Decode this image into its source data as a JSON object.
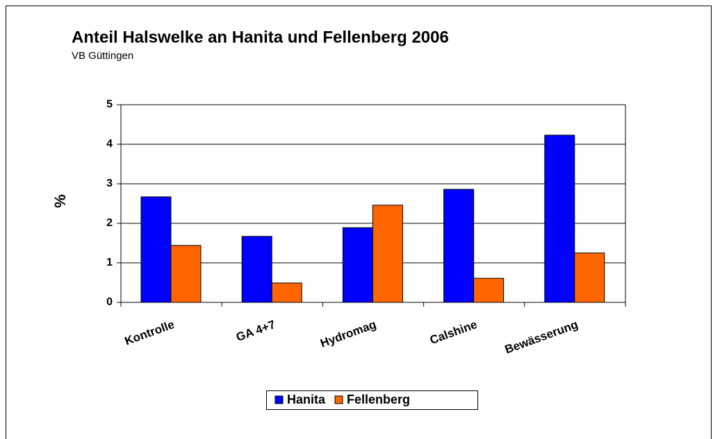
{
  "chart_data": {
    "type": "bar",
    "title": "Anteil Halswelke an Hanita und Fellenberg 2006",
    "subtitle": "VB Güttingen",
    "y_label": "%",
    "categories": [
      "Kontrolle",
      "GA 4+7",
      "Hydromag",
      "Calshine",
      "Bewässerung"
    ],
    "series": [
      {
        "name": "Hanita",
        "color": "#0000ff",
        "values": [
          2.67,
          1.67,
          1.89,
          2.86,
          4.23
        ]
      },
      {
        "name": "Fellenberg",
        "color": "#ff6600",
        "values": [
          1.44,
          0.49,
          2.46,
          0.61,
          1.25
        ]
      }
    ],
    "ylim": [
      0,
      5
    ],
    "yticks": [
      0,
      1,
      2,
      3,
      4,
      5
    ],
    "grid": true,
    "legend": "bottom"
  }
}
